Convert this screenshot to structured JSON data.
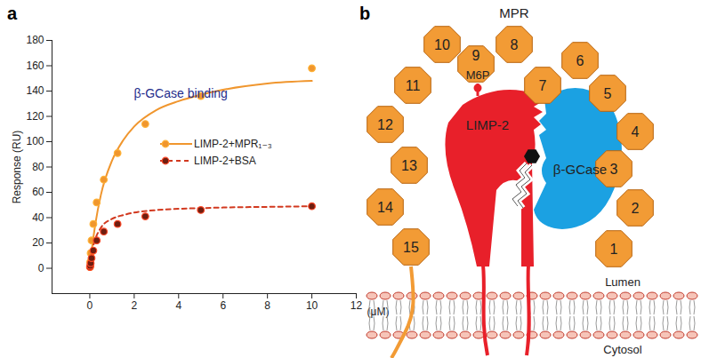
{
  "panel_labels": [
    "a",
    "b"
  ],
  "chart_data": {
    "type": "scatter",
    "x_label": "(μM)",
    "y_label": "Response (RU)",
    "xlim": [
      -1.7,
      12
    ],
    "xticks": [
      0,
      2,
      4,
      6,
      8,
      10,
      12
    ],
    "ylim": [
      -20,
      180
    ],
    "yticks": [
      0,
      20,
      40,
      60,
      80,
      100,
      120,
      140,
      160,
      180
    ],
    "legend": "center",
    "annotations": [
      {
        "text": "β-GCase binding",
        "color": "#1f2d8c"
      }
    ],
    "series": [
      {
        "name": "LIMP-2+MPR₁₋₃",
        "color": "#f0962e",
        "marker": "circle",
        "line_style": "solid",
        "x": [
          0.01,
          0.02,
          0.04,
          0.08,
          0.16,
          0.31,
          0.63,
          1.25,
          2.5,
          5,
          10
        ],
        "values": [
          1,
          5,
          12,
          22,
          35,
          52,
          70,
          91,
          114,
          136,
          158
        ],
        "fit_x": [
          0,
          0.1,
          0.25,
          0.5,
          1,
          1.5,
          2,
          3,
          4,
          5,
          6,
          8,
          10
        ],
        "fit_values": [
          0,
          16,
          35,
          58,
          85,
          101,
          112,
          125,
          132,
          137,
          141,
          146,
          148
        ]
      },
      {
        "name": "LIMP-2+BSA",
        "color": "#d2391f",
        "marker": "circle",
        "line_style": "dashed",
        "x": [
          0.01,
          0.02,
          0.04,
          0.08,
          0.16,
          0.31,
          0.63,
          1.25,
          2.5,
          5,
          10
        ],
        "values": [
          1,
          2,
          4,
          8,
          14,
          22,
          29,
          35,
          41,
          46,
          49
        ],
        "fit_x": [
          0,
          0.1,
          0.25,
          0.5,
          1,
          1.5,
          2,
          3,
          4,
          5,
          6,
          8,
          10
        ],
        "fit_values": [
          0,
          13,
          23,
          32,
          39,
          42,
          44,
          46,
          47,
          47.5,
          48,
          48.5,
          49
        ]
      }
    ]
  },
  "diagram": {
    "receptor_label": "MPR",
    "domains": [
      "1",
      "2",
      "3",
      "4",
      "5",
      "6",
      "7",
      "8",
      "9",
      "10",
      "11",
      "12",
      "13",
      "14",
      "15"
    ],
    "glycan_label": "M6P",
    "proteins": [
      "LIMP-2",
      "β-GCase"
    ],
    "compartments": [
      "Lumen",
      "Cytosol"
    ]
  }
}
